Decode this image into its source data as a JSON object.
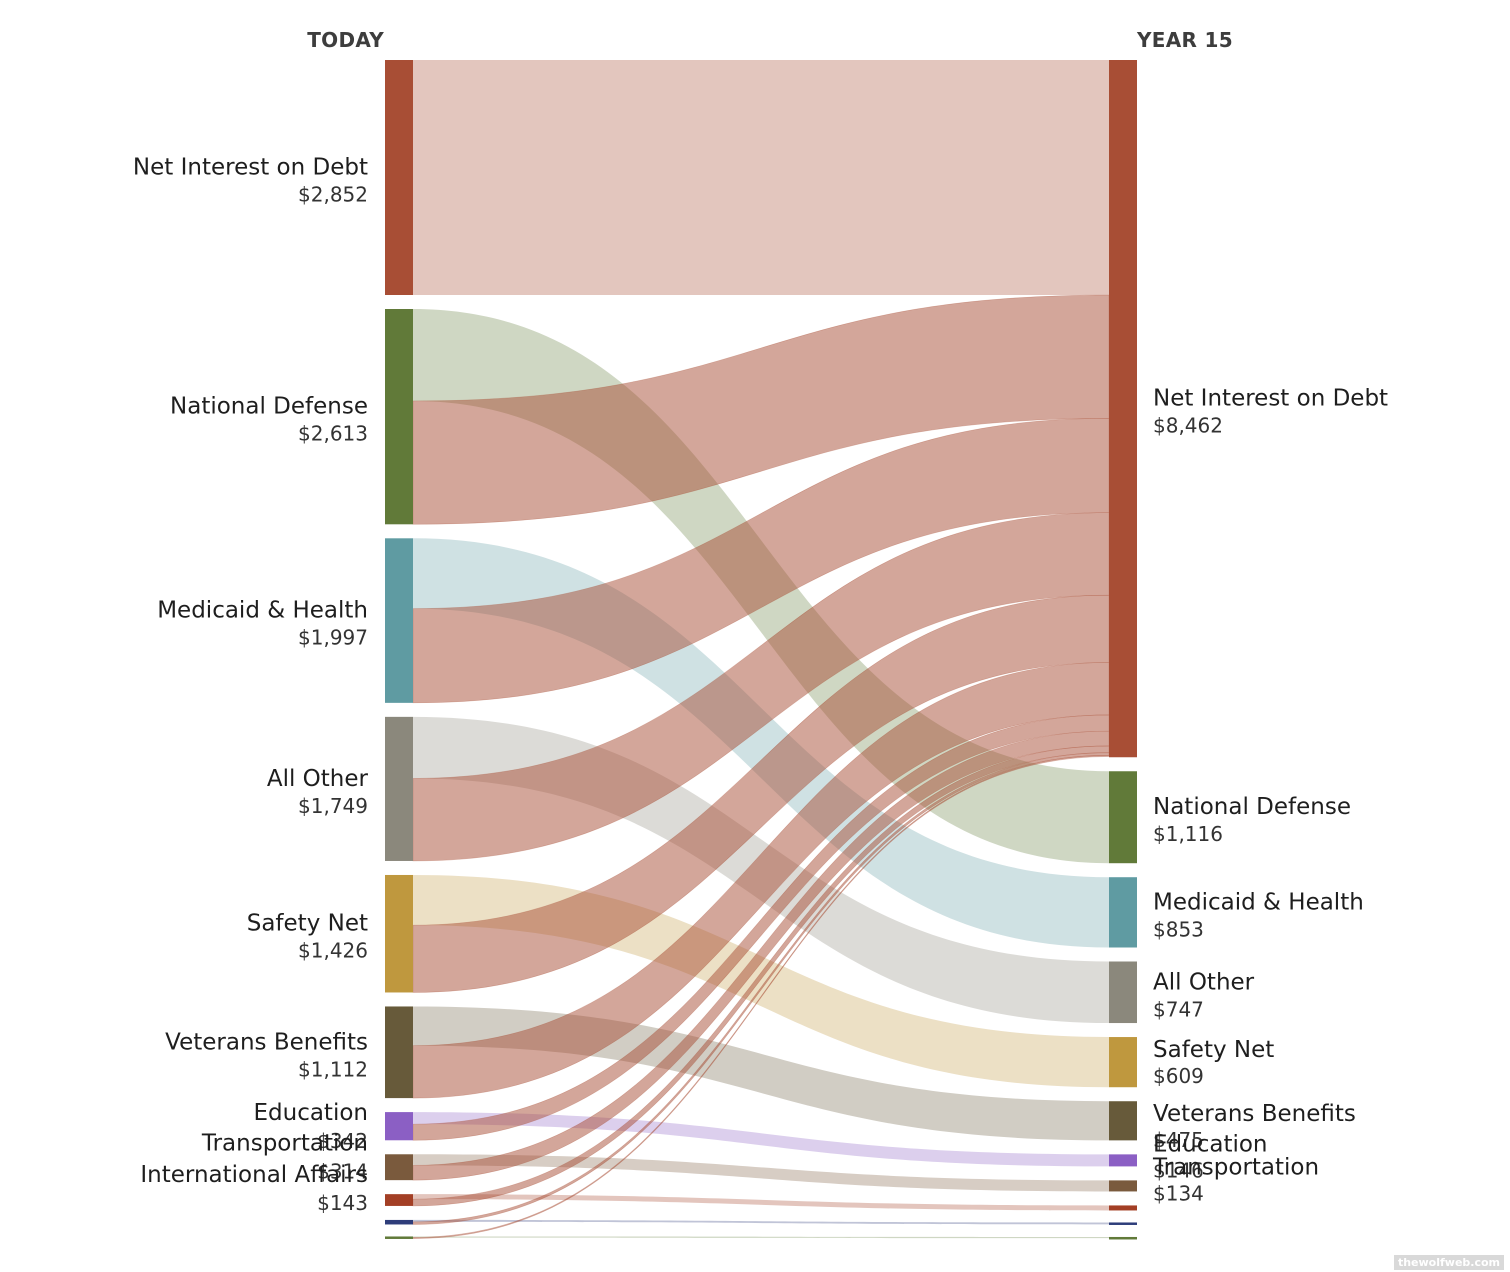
{
  "chart_data": {
    "type": "sankey",
    "left_header": "TODAY",
    "right_header": "YEAR 15",
    "left_nodes": [
      {
        "key": "net_interest",
        "label": "Net Interest on Debt",
        "value_label": "$2,852",
        "value": 2852,
        "color": "#a84e35"
      },
      {
        "key": "defense",
        "label": "National Defense",
        "value_label": "$2,613",
        "value": 2613,
        "color": "#617a39"
      },
      {
        "key": "medicaid",
        "label": "Medicaid & Health",
        "value_label": "$1,997",
        "value": 1997,
        "color": "#5f9ba2"
      },
      {
        "key": "all_other",
        "label": "All Other",
        "value_label": "$1,749",
        "value": 1749,
        "color": "#8b887c"
      },
      {
        "key": "safety_net",
        "label": "Safety Net",
        "value_label": "$1,426",
        "value": 1426,
        "color": "#bf983e"
      },
      {
        "key": "veterans",
        "label": "Veterans Benefits",
        "value_label": "$1,112",
        "value": 1112,
        "color": "#675a3a"
      },
      {
        "key": "education",
        "label": "Education",
        "value_label": "$342",
        "value": 342,
        "color": "#8b5fc4"
      },
      {
        "key": "transportation",
        "label": "Transportation",
        "value_label": "$314",
        "value": 314,
        "color": "#7a5a3d"
      },
      {
        "key": "international",
        "label": "International Affairs",
        "value_label": "$143",
        "value": 143,
        "color": "#a33f25"
      },
      {
        "key": "other_small_1",
        "label": "",
        "value_label": "",
        "value": 55,
        "color": "#2e3d7a"
      },
      {
        "key": "other_small_2",
        "label": "",
        "value_label": "",
        "value": 25,
        "color": "#617a39"
      }
    ],
    "right_nodes": [
      {
        "key": "net_interest",
        "label": "Net Interest on Debt",
        "value_label": "$8,462",
        "value": 8462,
        "color": "#a84e35"
      },
      {
        "key": "defense",
        "label": "National Defense",
        "value_label": "$1,116",
        "value": 1116,
        "color": "#617a39"
      },
      {
        "key": "medicaid",
        "label": "Medicaid & Health",
        "value_label": "$853",
        "value": 853,
        "color": "#5f9ba2"
      },
      {
        "key": "all_other",
        "label": "All Other",
        "value_label": "$747",
        "value": 747,
        "color": "#8b887c"
      },
      {
        "key": "safety_net",
        "label": "Safety Net",
        "value_label": "$609",
        "value": 609,
        "color": "#bf983e"
      },
      {
        "key": "veterans",
        "label": "Veterans Benefits",
        "value_label": "$475",
        "value": 475,
        "color": "#675a3a"
      },
      {
        "key": "education",
        "label": "Education",
        "value_label": "$146",
        "value": 146,
        "color": "#8b5fc4"
      },
      {
        "key": "transportation",
        "label": "Transportation",
        "value_label": "$134",
        "value": 134,
        "color": "#7a5a3d"
      },
      {
        "key": "international",
        "label": "",
        "value_label": "",
        "value": 61,
        "color": "#a33f25"
      },
      {
        "key": "other_small_1",
        "label": "",
        "value_label": "",
        "value": 23,
        "color": "#2e3d7a"
      },
      {
        "key": "other_small_2",
        "label": "",
        "value_label": "",
        "value": 11,
        "color": "#617a39"
      }
    ],
    "flows_note": "Each left category splits into a flow to its own right-hand category and a flow to Net Interest on Debt; Net Interest on Debt flows entirely to itself."
  },
  "watermark": "thewolfweb.com"
}
